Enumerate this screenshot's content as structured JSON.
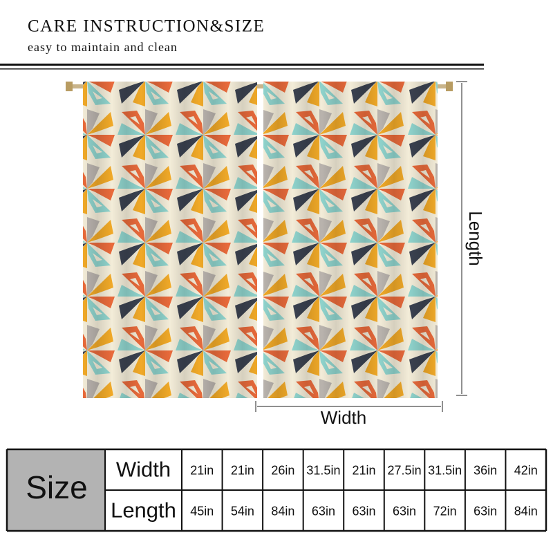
{
  "header": {
    "title": "CARE INSTRUCTION&SIZE",
    "subtitle": "easy to maintain and clean"
  },
  "diagram": {
    "width_label": "Width",
    "length_label": "Length"
  },
  "table": {
    "size_label": "Size",
    "rows": [
      {
        "label": "Width",
        "values": [
          "21in",
          "21in",
          "26in",
          "31.5in",
          "21in",
          "27.5in",
          "31.5in",
          "36in",
          "42in"
        ]
      },
      {
        "label": "Length",
        "values": [
          "45in",
          "54in",
          "84in",
          "63in",
          "63in",
          "63in",
          "72in",
          "63in",
          "84in"
        ]
      }
    ]
  }
}
